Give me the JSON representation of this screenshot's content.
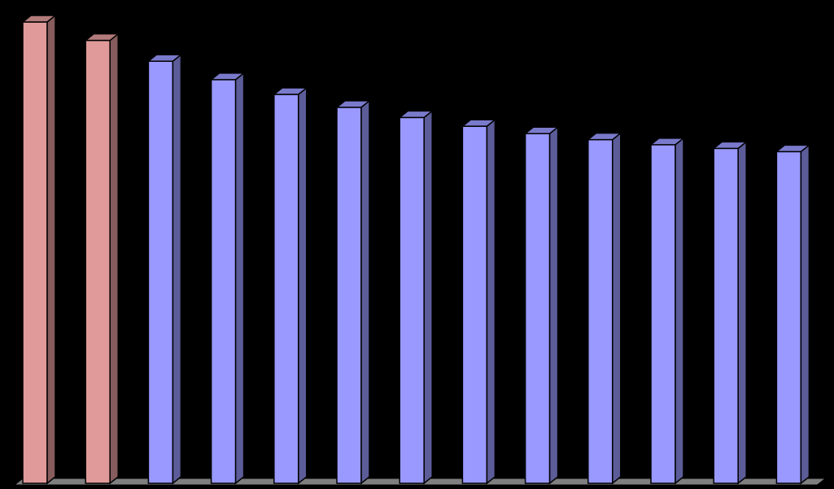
{
  "chart_data": {
    "type": "bar",
    "three_d": true,
    "title": "",
    "xlabel": "",
    "ylabel": "",
    "grid": false,
    "legend": "none",
    "ylim": [
      0,
      100
    ],
    "y_ticks": 10,
    "categories": [
      "",
      "",
      "",
      "",
      "",
      "",
      "",
      "",
      "",
      "",
      "",
      "",
      ""
    ],
    "values": [
      100,
      96,
      91.5,
      87.5,
      84.3,
      81.5,
      79.3,
      77.4,
      75.8,
      74.5,
      73.4,
      72.6,
      71.9
    ],
    "bar_colors": [
      "#e09a9a",
      "#e09a9a",
      "#9999ff",
      "#9999ff",
      "#9999ff",
      "#9999ff",
      "#9999ff",
      "#9999ff",
      "#9999ff",
      "#9999ff",
      "#9999ff",
      "#9999ff",
      "#9999ff"
    ],
    "colors": {
      "background": "#000000",
      "floor": "#7f7f7f",
      "outline": "#000000"
    }
  }
}
